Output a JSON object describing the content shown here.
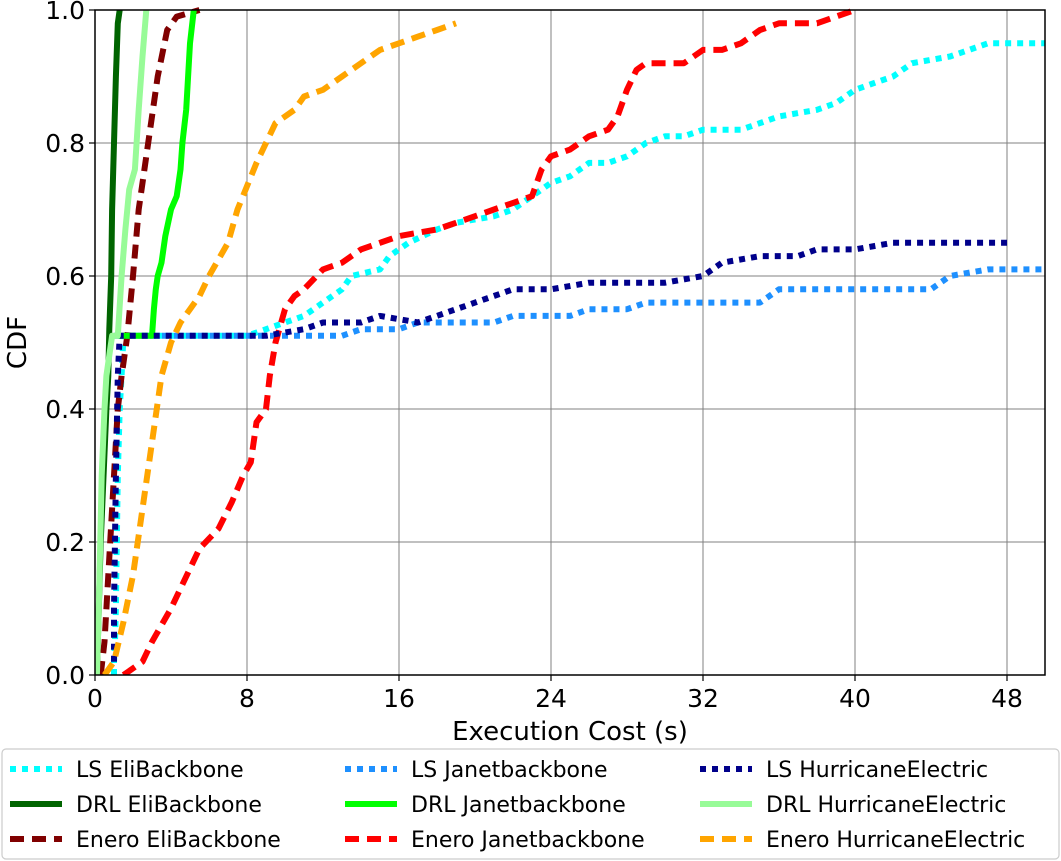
{
  "chart_data": {
    "type": "line",
    "title": "",
    "xlabel": "Execution Cost (s)",
    "ylabel": "CDF",
    "xlim": [
      0,
      50
    ],
    "ylim": [
      0,
      1.0
    ],
    "xticks": [
      0,
      8,
      16,
      24,
      32,
      40,
      48
    ],
    "yticks": [
      0.0,
      0.2,
      0.4,
      0.6,
      0.8,
      1.0
    ],
    "xtick_labels": [
      "0",
      "8",
      "16",
      "24",
      "32",
      "40",
      "48"
    ],
    "ytick_labels": [
      "0.0",
      "0.2",
      "0.4",
      "0.6",
      "0.8",
      "1.0"
    ],
    "grid": true,
    "legend_position": "bottom",
    "series": [
      {
        "name": "LS EliBackbone",
        "color": "#00ffff",
        "style": "dotted",
        "points": [
          [
            1.0,
            0
          ],
          [
            1.0,
            0.02
          ],
          [
            1.05,
            0.05
          ],
          [
            1.1,
            0.1
          ],
          [
            1.15,
            0.2
          ],
          [
            1.2,
            0.3
          ],
          [
            1.3,
            0.4
          ],
          [
            1.4,
            0.45
          ],
          [
            1.5,
            0.51
          ],
          [
            8,
            0.51
          ],
          [
            9,
            0.52
          ],
          [
            10,
            0.53
          ],
          [
            11,
            0.54
          ],
          [
            12,
            0.56
          ],
          [
            13,
            0.58
          ],
          [
            13.5,
            0.6
          ],
          [
            15,
            0.61
          ],
          [
            15.5,
            0.63
          ],
          [
            16,
            0.64
          ],
          [
            16.5,
            0.65
          ],
          [
            18,
            0.67
          ],
          [
            19,
            0.68
          ],
          [
            21,
            0.69
          ],
          [
            22,
            0.7
          ],
          [
            23,
            0.72
          ],
          [
            24,
            0.74
          ],
          [
            25,
            0.75
          ],
          [
            26,
            0.77
          ],
          [
            27,
            0.77
          ],
          [
            28,
            0.78
          ],
          [
            29,
            0.8
          ],
          [
            30,
            0.81
          ],
          [
            31,
            0.81
          ],
          [
            32,
            0.82
          ],
          [
            34,
            0.82
          ],
          [
            35,
            0.83
          ],
          [
            36,
            0.84
          ],
          [
            38,
            0.85
          ],
          [
            39,
            0.86
          ],
          [
            40,
            0.88
          ],
          [
            41,
            0.89
          ],
          [
            42,
            0.9
          ],
          [
            43,
            0.92
          ],
          [
            45,
            0.93
          ],
          [
            46,
            0.94
          ],
          [
            47,
            0.95
          ],
          [
            50,
            0.95
          ]
        ]
      },
      {
        "name": "DRL EliBackbone",
        "color": "#006400",
        "style": "solid",
        "points": [
          [
            0.1,
            0
          ],
          [
            0.3,
            0.2
          ],
          [
            0.6,
            0.4
          ],
          [
            0.7,
            0.45
          ],
          [
            0.75,
            0.52
          ],
          [
            0.85,
            0.6
          ],
          [
            0.9,
            0.7
          ],
          [
            1.0,
            0.8
          ],
          [
            1.1,
            0.9
          ],
          [
            1.2,
            0.98
          ],
          [
            1.3,
            1.0
          ]
        ]
      },
      {
        "name": "Enero EliBackbone",
        "color": "#800000",
        "style": "dashed",
        "points": [
          [
            0.3,
            0
          ],
          [
            0.5,
            0.05
          ],
          [
            0.8,
            0.2
          ],
          [
            1.0,
            0.3
          ],
          [
            1.2,
            0.4
          ],
          [
            1.4,
            0.45
          ],
          [
            1.7,
            0.51
          ],
          [
            2.0,
            0.6
          ],
          [
            2.3,
            0.7
          ],
          [
            2.6,
            0.76
          ],
          [
            3.0,
            0.84
          ],
          [
            3.3,
            0.9
          ],
          [
            3.8,
            0.97
          ],
          [
            4.3,
            0.99
          ],
          [
            5.5,
            1.0
          ]
        ]
      },
      {
        "name": "LS Janetbackbone",
        "color": "#1e90ff",
        "style": "dotted",
        "points": [
          [
            1,
            0.51
          ],
          [
            10,
            0.51
          ],
          [
            13,
            0.51
          ],
          [
            14,
            0.52
          ],
          [
            16,
            0.52
          ],
          [
            17,
            0.53
          ],
          [
            21,
            0.53
          ],
          [
            22,
            0.54
          ],
          [
            25,
            0.54
          ],
          [
            26,
            0.55
          ],
          [
            28,
            0.55
          ],
          [
            29,
            0.56
          ],
          [
            35,
            0.56
          ],
          [
            36,
            0.58
          ],
          [
            44,
            0.58
          ],
          [
            45,
            0.6
          ],
          [
            47,
            0.61
          ],
          [
            50,
            0.61
          ]
        ]
      },
      {
        "name": "DRL Janetbackbone",
        "color": "#00ff00",
        "style": "solid",
        "points": [
          [
            1.2,
            0.51
          ],
          [
            3.0,
            0.51
          ],
          [
            3.1,
            0.55
          ],
          [
            3.2,
            0.58
          ],
          [
            3.3,
            0.6
          ],
          [
            3.5,
            0.62
          ],
          [
            3.7,
            0.66
          ],
          [
            4.0,
            0.7
          ],
          [
            4.3,
            0.72
          ],
          [
            4.5,
            0.76
          ],
          [
            4.6,
            0.8
          ],
          [
            4.8,
            0.85
          ],
          [
            4.9,
            0.9
          ],
          [
            5.0,
            0.95
          ],
          [
            5.2,
            1.0
          ]
        ]
      },
      {
        "name": "Enero Janetbackbone",
        "color": "#ff0000",
        "style": "dashed",
        "points": [
          [
            1.5,
            0
          ],
          [
            2.5,
            0.02
          ],
          [
            3,
            0.05
          ],
          [
            4,
            0.1
          ],
          [
            4.5,
            0.13
          ],
          [
            5.5,
            0.19
          ],
          [
            6.5,
            0.22
          ],
          [
            7.2,
            0.26
          ],
          [
            7.8,
            0.3
          ],
          [
            8.2,
            0.32
          ],
          [
            8.5,
            0.38
          ],
          [
            9,
            0.4
          ],
          [
            9.2,
            0.45
          ],
          [
            9.5,
            0.5
          ],
          [
            10,
            0.55
          ],
          [
            10.5,
            0.57
          ],
          [
            11,
            0.58
          ],
          [
            12,
            0.61
          ],
          [
            13,
            0.62
          ],
          [
            14,
            0.64
          ],
          [
            15,
            0.65
          ],
          [
            16,
            0.66
          ],
          [
            18,
            0.67
          ],
          [
            20,
            0.69
          ],
          [
            21,
            0.7
          ],
          [
            22,
            0.71
          ],
          [
            23,
            0.72
          ],
          [
            23.5,
            0.76
          ],
          [
            24,
            0.78
          ],
          [
            25,
            0.79
          ],
          [
            26,
            0.81
          ],
          [
            27,
            0.82
          ],
          [
            27.5,
            0.84
          ],
          [
            28,
            0.88
          ],
          [
            28.5,
            0.91
          ],
          [
            29,
            0.92
          ],
          [
            31,
            0.92
          ],
          [
            32,
            0.94
          ],
          [
            33,
            0.94
          ],
          [
            34,
            0.95
          ],
          [
            35,
            0.97
          ],
          [
            36,
            0.98
          ],
          [
            38,
            0.98
          ],
          [
            39,
            0.99
          ],
          [
            40,
            1.0
          ]
        ]
      },
      {
        "name": "LS HurricaneElectric",
        "color": "#00008b",
        "style": "dotted",
        "points": [
          [
            1,
            0.02
          ],
          [
            1.0,
            0.1
          ],
          [
            1.1,
            0.3
          ],
          [
            1.2,
            0.45
          ],
          [
            1.3,
            0.51
          ],
          [
            9,
            0.51
          ],
          [
            11,
            0.52
          ],
          [
            12,
            0.53
          ],
          [
            14,
            0.53
          ],
          [
            15,
            0.54
          ],
          [
            17,
            0.53
          ],
          [
            19,
            0.55
          ],
          [
            20,
            0.56
          ],
          [
            22,
            0.58
          ],
          [
            24,
            0.58
          ],
          [
            26,
            0.59
          ],
          [
            28,
            0.59
          ],
          [
            30,
            0.59
          ],
          [
            32,
            0.6
          ],
          [
            33,
            0.62
          ],
          [
            35,
            0.63
          ],
          [
            37,
            0.63
          ],
          [
            38,
            0.64
          ],
          [
            39,
            0.64
          ],
          [
            40,
            0.64
          ],
          [
            42,
            0.65
          ],
          [
            44,
            0.65
          ],
          [
            46,
            0.65
          ],
          [
            48,
            0.65
          ]
        ]
      },
      {
        "name": "DRL HurricaneElectric",
        "color": "#98fb98",
        "style": "solid",
        "points": [
          [
            0.1,
            0
          ],
          [
            0.2,
            0.1
          ],
          [
            0.35,
            0.3
          ],
          [
            0.5,
            0.4
          ],
          [
            0.6,
            0.45
          ],
          [
            0.9,
            0.51
          ],
          [
            1.2,
            0.51
          ],
          [
            1.4,
            0.6
          ],
          [
            1.6,
            0.67
          ],
          [
            1.8,
            0.73
          ],
          [
            2.1,
            0.76
          ],
          [
            2.3,
            0.85
          ],
          [
            2.5,
            0.93
          ],
          [
            2.7,
            1.0
          ]
        ]
      },
      {
        "name": "Enero HurricaneElectric",
        "color": "#ffa500",
        "style": "dashed",
        "points": [
          [
            0.5,
            0
          ],
          [
            1,
            0.02
          ],
          [
            1.5,
            0.08
          ],
          [
            2,
            0.15
          ],
          [
            2.5,
            0.25
          ],
          [
            3,
            0.35
          ],
          [
            3.5,
            0.45
          ],
          [
            4,
            0.5
          ],
          [
            4.5,
            0.53
          ],
          [
            5,
            0.55
          ],
          [
            5.5,
            0.57
          ],
          [
            6,
            0.6
          ],
          [
            7,
            0.65
          ],
          [
            7.5,
            0.7
          ],
          [
            8.5,
            0.77
          ],
          [
            9,
            0.8
          ],
          [
            9.5,
            0.83
          ],
          [
            10.5,
            0.85
          ],
          [
            11,
            0.87
          ],
          [
            12,
            0.88
          ],
          [
            13,
            0.9
          ],
          [
            14,
            0.92
          ],
          [
            15,
            0.94
          ],
          [
            16,
            0.95
          ],
          [
            17,
            0.96
          ],
          [
            18,
            0.97
          ],
          [
            19,
            0.98
          ]
        ]
      }
    ]
  }
}
